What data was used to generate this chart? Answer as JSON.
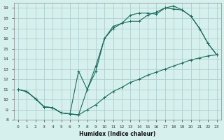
{
  "xlabel": "Humidex (Indice chaleur)",
  "bg_color": "#d6f0ee",
  "grid_color": "#b0cece",
  "line_color": "#1a6b5a",
  "xlim": [
    -0.5,
    23.5
  ],
  "ylim": [
    8,
    19.5
  ],
  "xticks": [
    0,
    1,
    2,
    3,
    4,
    5,
    6,
    7,
    8,
    9,
    10,
    11,
    12,
    13,
    14,
    15,
    16,
    17,
    18,
    19,
    20,
    21,
    22,
    23
  ],
  "yticks": [
    8,
    9,
    10,
    11,
    12,
    13,
    14,
    15,
    16,
    17,
    18,
    19
  ],
  "line1_x": [
    0,
    1,
    2,
    3,
    4,
    5,
    6,
    7,
    8,
    9,
    10,
    11,
    12,
    13,
    14,
    15,
    16,
    17,
    18,
    19,
    20,
    21,
    22,
    23
  ],
  "line1_y": [
    11.0,
    10.8,
    10.1,
    9.3,
    9.2,
    8.7,
    8.6,
    8.5,
    9.0,
    9.5,
    10.2,
    10.8,
    11.2,
    11.7,
    12.0,
    12.4,
    12.7,
    13.0,
    13.3,
    13.6,
    13.9,
    14.1,
    14.3,
    14.4
  ],
  "line2_x": [
    0,
    1,
    2,
    3,
    4,
    5,
    6,
    7,
    8,
    9,
    10,
    11,
    12,
    13,
    14,
    15,
    16,
    17,
    18,
    19,
    20,
    21,
    22,
    23
  ],
  "line2_y": [
    11.0,
    10.8,
    10.1,
    9.3,
    9.2,
    8.7,
    8.6,
    8.5,
    11.0,
    12.8,
    16.0,
    17.2,
    17.5,
    17.7,
    17.7,
    18.3,
    18.6,
    19.0,
    19.2,
    18.8,
    18.2,
    17.0,
    15.5,
    14.4
  ],
  "line3_x": [
    0,
    1,
    2,
    3,
    4,
    5,
    6,
    7,
    8,
    9,
    10,
    11,
    12,
    13,
    14,
    15,
    16,
    17,
    18,
    19,
    20,
    21,
    22,
    23
  ],
  "line3_y": [
    11.0,
    10.8,
    10.1,
    9.3,
    9.2,
    8.7,
    8.6,
    12.8,
    11.0,
    13.3,
    16.0,
    17.0,
    17.5,
    18.3,
    18.5,
    18.5,
    18.4,
    19.0,
    18.9,
    18.8,
    18.2,
    17.0,
    15.5,
    14.4
  ],
  "marker": "+"
}
